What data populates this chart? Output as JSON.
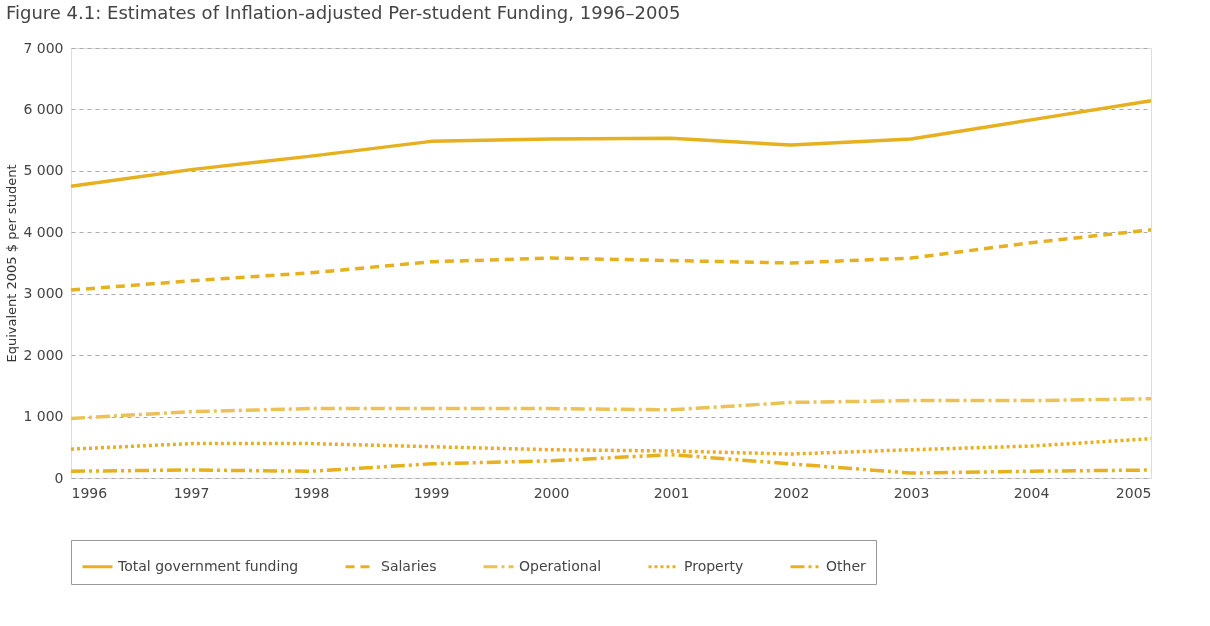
{
  "chart_data": {
    "type": "line",
    "title": "Figure 4.1: Estimates of Inflation-adjusted Per-student Funding, 1996–2005",
    "ylabel": "Equivalent 2005 $ per student",
    "x": [
      1996,
      1997,
      1998,
      1999,
      2000,
      2001,
      2002,
      2003,
      2004,
      2005
    ],
    "xlim": [
      1996,
      2005
    ],
    "xticks": [
      1996,
      1997,
      1998,
      1999,
      2000,
      2001,
      2002,
      2003,
      2004,
      2005
    ],
    "ylim": [
      0,
      7000
    ],
    "yticks": [
      {
        "value": 0,
        "label": "0"
      },
      {
        "value": 1000,
        "label": "1 000"
      },
      {
        "value": 2000,
        "label": "2 000"
      },
      {
        "value": 3000,
        "label": "3 000"
      },
      {
        "value": 4000,
        "label": "4 000"
      },
      {
        "value": 5000,
        "label": "5 000"
      },
      {
        "value": 6000,
        "label": "6 000"
      },
      {
        "value": 7000,
        "label": "7 000"
      }
    ],
    "grid": "y",
    "legend": "bottom",
    "marker": "none",
    "series": [
      {
        "name": "Total government funding",
        "color": "#e6b01e",
        "line_style": "solid",
        "values": [
          4750,
          5020,
          5240,
          5480,
          5520,
          5530,
          5420,
          5520,
          5830,
          6140
        ]
      },
      {
        "name": "Salaries",
        "color": "#e6b01e",
        "line_style": "dashed",
        "values": [
          3060,
          3210,
          3340,
          3520,
          3580,
          3540,
          3500,
          3580,
          3830,
          4040
        ]
      },
      {
        "name": "Operational",
        "color": "#ecc155",
        "line_style": "dashdot",
        "values": [
          970,
          1080,
          1130,
          1130,
          1130,
          1110,
          1230,
          1260,
          1260,
          1290
        ]
      },
      {
        "name": "Property",
        "color": "#e6b01e",
        "line_style": "dotted",
        "values": [
          470,
          560,
          560,
          510,
          460,
          440,
          390,
          460,
          520,
          640
        ]
      },
      {
        "name": "Other",
        "color": "#e6b01e",
        "line_style": "dashdotdot",
        "values": [
          110,
          130,
          110,
          230,
          280,
          380,
          230,
          80,
          110,
          130
        ]
      }
    ]
  }
}
